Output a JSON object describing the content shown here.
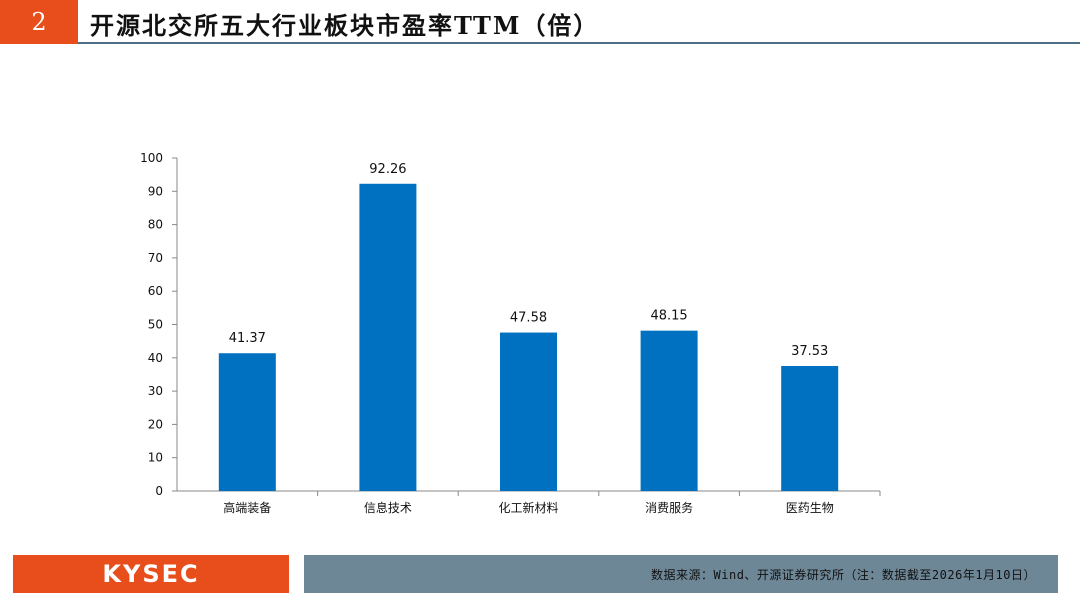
{
  "header": {
    "number": "2",
    "title": "开源北交所五大行业板块市盈率TTM（倍）"
  },
  "colors": {
    "accent": "#e84e1b",
    "bar": "#0070c0",
    "source_bar": "#6e8797"
  },
  "chart_data": {
    "type": "bar",
    "title": "",
    "xlabel": "",
    "ylabel": "",
    "categories": [
      "高端装备",
      "信息技术",
      "化工新材料",
      "消费服务",
      "医药生物"
    ],
    "values": [
      41.37,
      92.26,
      47.58,
      48.15,
      37.53
    ],
    "value_labels": [
      "41.37",
      "92.26",
      "47.58",
      "48.15",
      "37.53"
    ],
    "ylim": [
      0,
      100
    ],
    "yticks": [
      "0",
      "10",
      "20",
      "30",
      "40",
      "50",
      "60",
      "70",
      "80",
      "90",
      "100"
    ],
    "grid": false,
    "legend": "none"
  },
  "footer": {
    "logo_text": "KYSEC",
    "source": "数据来源：Wind、开源证券研究所（注：数据截至2026年1月10日）"
  }
}
